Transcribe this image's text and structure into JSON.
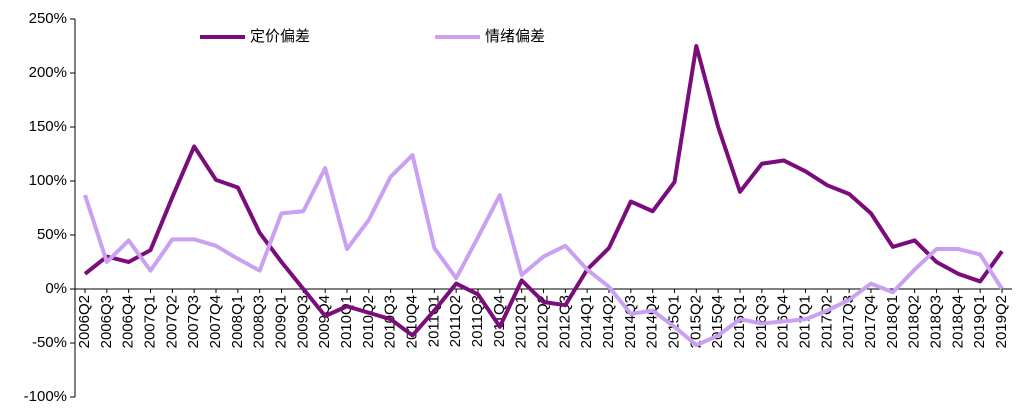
{
  "chart_data": {
    "type": "line",
    "categories": [
      "2006Q2",
      "2006Q3",
      "2006Q4",
      "2007Q1",
      "2007Q2",
      "2007Q3",
      "2007Q4",
      "2008Q1",
      "2008Q3",
      "2009Q1",
      "2009Q3",
      "2009Q4",
      "2010Q1",
      "2010Q2",
      "2010Q3",
      "2010Q4",
      "2011Q1",
      "2011Q2",
      "2011Q3",
      "2011Q4",
      "2012Q1",
      "2012Q2",
      "2012Q3",
      "2014Q1",
      "2014Q2",
      "2014Q3",
      "2014Q4",
      "2015Q1",
      "2015Q2",
      "2015Q4",
      "2016Q1",
      "2016Q3",
      "2016Q4",
      "2017Q1",
      "2017Q2",
      "2017Q3",
      "2017Q4",
      "2018Q1",
      "2018Q2",
      "2018Q3",
      "2018Q4",
      "2019Q1",
      "2019Q2"
    ],
    "series": [
      {
        "name": "定价偏差",
        "color": "#7b0c7b",
        "values": [
          14,
          30,
          25,
          36,
          85,
          132,
          101,
          94,
          52,
          25,
          0,
          -25,
          -16,
          -22,
          -28,
          -43,
          -20,
          5,
          -5,
          -35,
          8,
          -12,
          -15,
          18,
          38,
          81,
          72,
          99,
          225,
          150,
          90,
          116,
          119,
          109,
          96,
          88,
          70,
          39,
          45,
          25,
          14,
          7,
          35
        ]
      },
      {
        "name": "情绪偏差",
        "color": "#c9a0f2",
        "values": [
          87,
          25,
          45,
          17,
          46,
          46,
          40,
          28,
          17,
          70,
          72,
          112,
          37,
          64,
          104,
          124,
          38,
          10,
          48,
          87,
          13,
          30,
          40,
          18,
          2,
          -23,
          -20,
          -35,
          -52,
          -43,
          -28,
          -32,
          -30,
          -28,
          -20,
          -10,
          5,
          -3,
          18,
          37,
          37,
          32,
          0
        ]
      }
    ],
    "ylim": [
      -100,
      250
    ],
    "yticks": [
      {
        "value": -100,
        "label": "-100%"
      },
      {
        "value": -50,
        "label": "-50%"
      },
      {
        "value": 0,
        "label": "0%"
      },
      {
        "value": 50,
        "label": "50%"
      },
      {
        "value": 100,
        "label": "100%"
      },
      {
        "value": 150,
        "label": "150%"
      },
      {
        "value": 200,
        "label": "200%"
      },
      {
        "value": 250,
        "label": "250%"
      }
    ],
    "legend": "top"
  }
}
